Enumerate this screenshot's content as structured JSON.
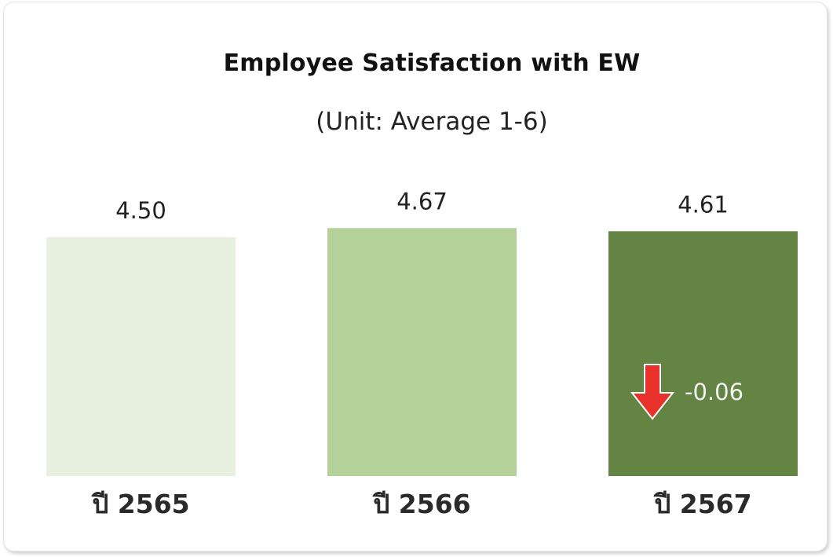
{
  "chart_data": {
    "type": "bar",
    "title": "Employee Satisfaction with EW",
    "subtitle": "(Unit: Average 1-6)",
    "categories": [
      "ปี 2565",
      "ปี 2566",
      "ปี 2567"
    ],
    "values": [
      4.5,
      4.67,
      4.61
    ],
    "value_labels": [
      "4.50",
      "4.67",
      "4.61"
    ],
    "bar_colors": [
      "#e8f0df",
      "#b3d198",
      "#638443"
    ],
    "annotation": {
      "category": "ปี 2567",
      "text": "-0.06",
      "icon": "arrow-down-icon",
      "icon_color": "#e8312a"
    },
    "grid": false,
    "legend": "none"
  }
}
